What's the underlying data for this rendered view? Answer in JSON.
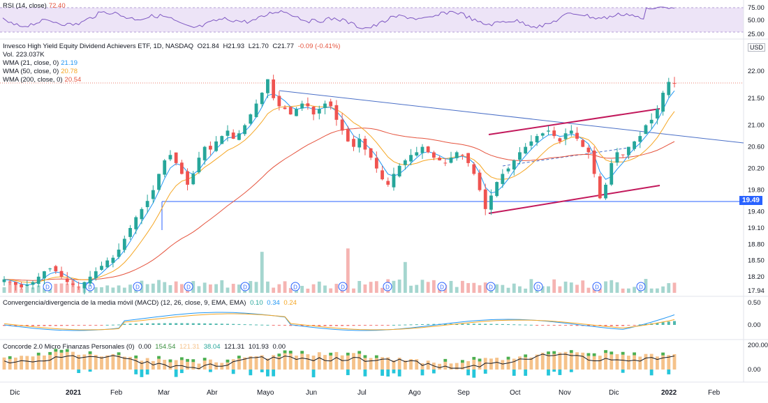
{
  "symbol": {
    "title": "Invesco High Yield Equity Dividend Achievers ETF, 1D, NASDAQ",
    "o": "O21.84",
    "h": "H21.93",
    "l": "L21.70",
    "c": "C21.77",
    "chg": "-0.09 (-0.41%)"
  },
  "volume": {
    "label": "Vol.",
    "value": "223.037K"
  },
  "wma21": {
    "label": "WMA (21, close, 0)",
    "value": "21.19",
    "color": "#2196f3"
  },
  "wma50": {
    "label": "WMA (50, close, 0)",
    "value": "20.78",
    "color": "#f5a623"
  },
  "wma200": {
    "label": "WMA (200, close, 0)",
    "value": "20.54",
    "color": "#e5533d"
  },
  "rsi": {
    "label": "RSI (14, close)",
    "value": "72.40",
    "color": "#7e57c2",
    "ticks": [
      "75.00",
      "50.00",
      "25.00"
    ]
  },
  "macd": {
    "label": "Convergencia/divergencia de la media móvil (MACD) (12, 26, close, 9, EMA, EMA)",
    "v1": "0.10",
    "v2": "0.34",
    "v3": "0.24",
    "ticks": [
      "0.50",
      "0.00"
    ]
  },
  "concorde": {
    "label": "Concorde 2.0 Micro Finanzas Personales (0)",
    "v1": "0.00",
    "v2": "154.54",
    "v3": "121.31",
    "v4": "38.04",
    "v5": "121.31",
    "v6": "101.93",
    "v7": "0.00",
    "ticks": [
      "200.00",
      "0.00"
    ]
  },
  "currency": "USD",
  "last_price_badge": "19.49",
  "chart_data": {
    "type": "candlestick",
    "price_ticks": [
      "22.00",
      "21.50",
      "21.00",
      "20.60",
      "20.20",
      "19.80",
      "19.40",
      "19.10",
      "18.80",
      "18.50",
      "18.20",
      "17.94"
    ],
    "months": [
      "Dic",
      "2021",
      "Feb",
      "Mar",
      "Abr",
      "Mayo",
      "Jun",
      "Jul",
      "Ago",
      "Sep",
      "Oct",
      "Nov",
      "Dic",
      "2022",
      "Feb"
    ],
    "closes": [
      18.15,
      18.1,
      18.05,
      18.0,
      18.05,
      18.1,
      18.2,
      18.3,
      18.35,
      18.3,
      18.2,
      18.1,
      18.05,
      18.0,
      18.1,
      18.2,
      18.3,
      18.4,
      18.5,
      18.55,
      18.7,
      18.9,
      19.1,
      19.3,
      19.45,
      19.6,
      19.8,
      20.1,
      20.35,
      20.45,
      20.3,
      20.1,
      19.9,
      20.1,
      20.4,
      20.6,
      20.55,
      20.7,
      20.8,
      20.9,
      20.75,
      20.85,
      21.0,
      21.2,
      21.4,
      21.6,
      21.85,
      21.5,
      21.35,
      21.3,
      21.2,
      21.3,
      21.4,
      21.35,
      21.2,
      21.3,
      21.4,
      21.35,
      21.1,
      20.9,
      20.7,
      20.6,
      20.75,
      20.55,
      20.4,
      20.2,
      20.0,
      19.9,
      20.1,
      20.25,
      20.35,
      20.45,
      20.5,
      20.6,
      20.5,
      20.4,
      20.35,
      20.3,
      20.4,
      20.5,
      20.45,
      20.3,
      20.1,
      19.8,
      19.45,
      19.7,
      19.95,
      20.1,
      20.2,
      20.35,
      20.5,
      20.6,
      20.7,
      20.8,
      20.85,
      20.9,
      20.8,
      20.7,
      20.85,
      20.9,
      20.75,
      20.6,
      20.5,
      20.1,
      19.65,
      19.9,
      20.3,
      20.5,
      20.45,
      20.6,
      20.7,
      20.8,
      21.0,
      21.1,
      21.3,
      21.6,
      21.8,
      21.77
    ],
    "levels": {
      "support": 19.49
    }
  }
}
